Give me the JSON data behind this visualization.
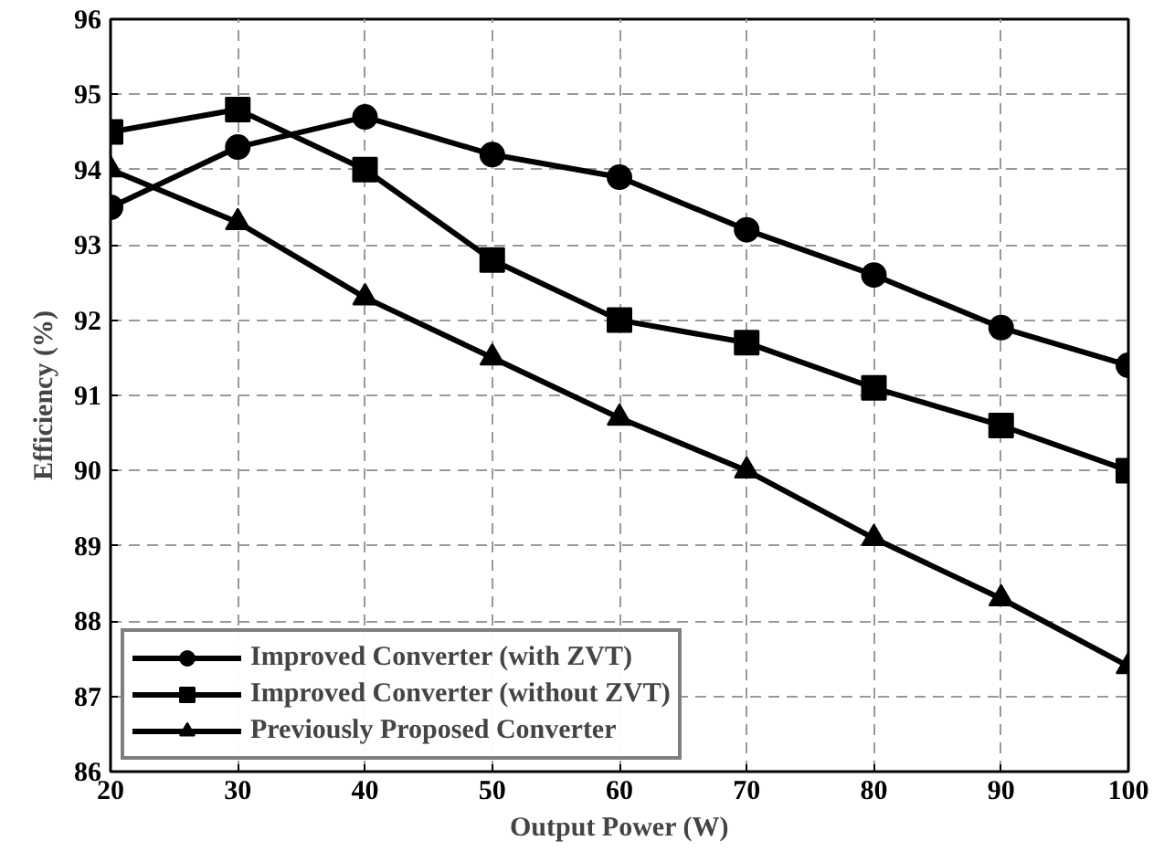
{
  "chart_data": {
    "type": "line",
    "xlabel": "Output Power (W)",
    "ylabel": "Efficiency (%)",
    "x": [
      20,
      30,
      40,
      50,
      60,
      70,
      80,
      90,
      100
    ],
    "xlim": [
      20,
      100
    ],
    "xticks": [
      20,
      30,
      40,
      50,
      60,
      70,
      80,
      90,
      100
    ],
    "ylim": [
      86,
      96
    ],
    "yticks": [
      86,
      87,
      88,
      89,
      90,
      91,
      92,
      93,
      94,
      95,
      96
    ],
    "grid": true,
    "legend": "bottom left",
    "line_style": "solid",
    "series": [
      {
        "name": "Improved Converter (with ZVT)",
        "color": "#000000",
        "marker": "circle",
        "values": [
          93.5,
          94.3,
          94.7,
          94.2,
          93.9,
          93.2,
          92.6,
          91.9,
          91.4
        ]
      },
      {
        "name": "Improved Converter (without ZVT)",
        "color": "#000000",
        "marker": "square",
        "values": [
          94.5,
          94.8,
          94.0,
          92.8,
          92.0,
          91.7,
          91.1,
          90.6,
          90.0
        ]
      },
      {
        "name": "Previously Proposed Converter",
        "color": "#000000",
        "marker": "triangle",
        "values": [
          94.0,
          93.3,
          92.3,
          91.5,
          90.7,
          90.0,
          89.1,
          88.3,
          87.4
        ]
      }
    ]
  }
}
